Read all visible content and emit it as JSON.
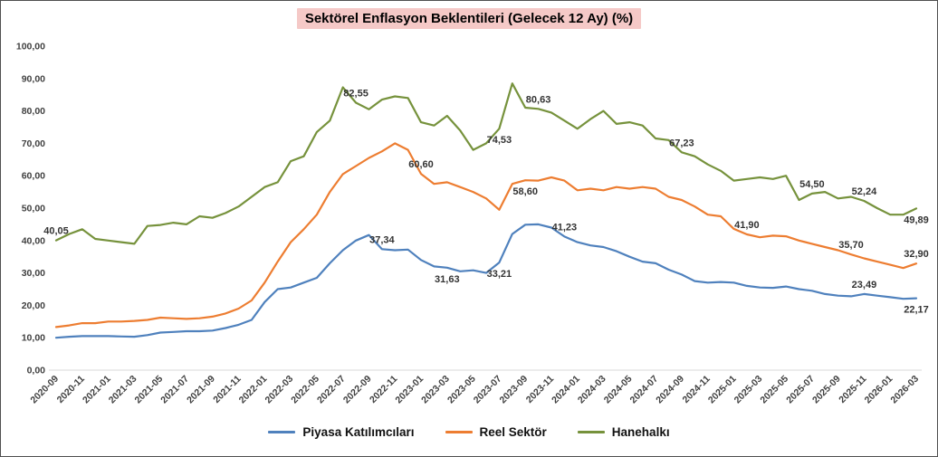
{
  "title": "Sektörel Enflasyon Beklentileri (Gelecek 12 Ay) (%)",
  "colors": {
    "piyasa": "#4F81BD",
    "reel": "#ED7D31",
    "hane": "#76923C",
    "title_bg": "#F5C9C7",
    "label_text": "#333333"
  },
  "legend": [
    {
      "key": "piyasa",
      "label": "Piyasa Katılımcıları"
    },
    {
      "key": "reel",
      "label": "Reel Sektör"
    },
    {
      "key": "hane",
      "label": "Hanehalkı"
    }
  ],
  "chart_data": {
    "type": "line",
    "title": "Sektörel Enflasyon Beklentileri (Gelecek 12 Ay) (%)",
    "xlabel": "",
    "ylabel": "",
    "ylim": [
      0,
      100
    ],
    "grid": false,
    "legend_position": "bottom",
    "y_ticks": [
      "0,00",
      "10,00",
      "20,00",
      "30,00",
      "40,00",
      "50,00",
      "60,00",
      "70,00",
      "80,00",
      "90,00",
      "100,00"
    ],
    "x_tick_step": 2,
    "x": [
      "2020-09",
      "2020-10",
      "2020-11",
      "2020-12",
      "2021-01",
      "2021-02",
      "2021-03",
      "2021-04",
      "2021-05",
      "2021-06",
      "2021-07",
      "2021-08",
      "2021-09",
      "2021-10",
      "2021-11",
      "2021-12",
      "2022-01",
      "2022-02",
      "2022-03",
      "2022-04",
      "2022-05",
      "2022-06",
      "2022-07",
      "2022-08",
      "2022-09",
      "2022-10",
      "2022-11",
      "2022-12",
      "2023-01",
      "2023-02",
      "2023-03",
      "2023-04",
      "2023-05",
      "2023-06",
      "2023-07",
      "2023-08",
      "2023-09",
      "2023-10",
      "2023-11",
      "2023-12",
      "2024-01",
      "2024-02",
      "2024-03",
      "2024-04",
      "2024-05",
      "2024-06",
      "2024-07",
      "2024-08",
      "2024-09",
      "2024-10",
      "2024-11",
      "2024-12",
      "2025-01",
      "2025-02",
      "2025-03",
      "2025-04",
      "2025-05",
      "2025-06",
      "2025-07",
      "2025-08",
      "2025-09",
      "2025-10",
      "2025-11",
      "2025-12",
      "2026-01",
      "2026-02",
      "2026-03"
    ],
    "series": [
      {
        "name": "Piyasa Katılımcıları",
        "key": "piyasa",
        "values": [
          10.0,
          10.3,
          10.5,
          10.5,
          10.5,
          10.4,
          10.3,
          10.8,
          11.6,
          11.8,
          12.0,
          12.0,
          12.2,
          13.0,
          14.0,
          15.5,
          21.0,
          25.0,
          25.5,
          27.0,
          28.5,
          33.0,
          37.0,
          40.0,
          41.7,
          37.34,
          37.0,
          37.2,
          34.0,
          32.0,
          31.63,
          30.5,
          30.8,
          30.0,
          33.21,
          42.0,
          44.9,
          45.0,
          44.0,
          41.23,
          39.5,
          38.5,
          38.0,
          36.7,
          35.0,
          33.5,
          33.0,
          31.0,
          29.5,
          27.5,
          27.0,
          27.2,
          27.0,
          26.0,
          25.5,
          25.4,
          25.8,
          25.0,
          24.5,
          23.5,
          23.0,
          22.8,
          23.49,
          23.0,
          22.5,
          22.0,
          22.17
        ]
      },
      {
        "name": "Reel Sektör",
        "key": "reel",
        "values": [
          13.3,
          13.8,
          14.5,
          14.5,
          15.0,
          15.0,
          15.2,
          15.5,
          16.2,
          16.0,
          15.8,
          16.0,
          16.5,
          17.5,
          19.0,
          21.5,
          27.0,
          33.5,
          39.5,
          43.5,
          48.0,
          55.0,
          60.5,
          63.0,
          65.5,
          67.5,
          70.0,
          68.0,
          60.6,
          57.5,
          58.0,
          56.5,
          55.0,
          53.0,
          49.5,
          57.5,
          58.6,
          58.5,
          59.5,
          58.5,
          55.5,
          56.0,
          55.5,
          56.5,
          56.0,
          56.5,
          56.0,
          53.5,
          52.5,
          50.5,
          48.0,
          47.5,
          43.6,
          41.9,
          41.0,
          41.5,
          41.3,
          40.0,
          39.0,
          38.0,
          37.0,
          35.7,
          34.5,
          33.5,
          32.5,
          31.5,
          32.9
        ]
      },
      {
        "name": "Hanehalkı",
        "key": "hane",
        "values": [
          40.05,
          42.0,
          43.5,
          40.5,
          40.0,
          39.5,
          39.0,
          44.5,
          44.8,
          45.5,
          45.0,
          47.5,
          47.0,
          48.5,
          50.5,
          53.5,
          56.5,
          58.0,
          64.5,
          66.0,
          73.5,
          77.0,
          87.3,
          82.55,
          80.5,
          83.5,
          84.5,
          84.0,
          76.5,
          75.5,
          78.5,
          74.0,
          68.0,
          70.0,
          74.53,
          88.5,
          81.0,
          80.63,
          79.5,
          77.0,
          74.5,
          77.5,
          80.0,
          76.0,
          76.5,
          75.5,
          71.5,
          71.0,
          67.23,
          66.0,
          63.5,
          61.5,
          58.5,
          59.0,
          59.5,
          59.0,
          60.0,
          52.5,
          54.5,
          55.0,
          53.0,
          53.5,
          52.24,
          50.0,
          48.0,
          48.0,
          49.89
        ]
      }
    ],
    "point_labels": [
      {
        "series": "hane",
        "x": "2020-09",
        "text": "40,05",
        "placement": "above"
      },
      {
        "series": "hane",
        "x": "2022-08",
        "text": "82,55",
        "placement": "above"
      },
      {
        "series": "hane",
        "x": "2023-07",
        "text": "74,53",
        "placement": "below"
      },
      {
        "series": "hane",
        "x": "2023-10",
        "text": "80,63",
        "placement": "above"
      },
      {
        "series": "hane",
        "x": "2024-09",
        "text": "67,23",
        "placement": "above"
      },
      {
        "series": "hane",
        "x": "2025-07",
        "text": "54,50",
        "placement": "above"
      },
      {
        "series": "hane",
        "x": "2025-11",
        "text": "52,24",
        "placement": "above"
      },
      {
        "series": "hane",
        "x": "2026-03",
        "text": "49,89",
        "placement": "below"
      },
      {
        "series": "reel",
        "x": "2023-01",
        "text": "60,60",
        "placement": "above"
      },
      {
        "series": "reel",
        "x": "2023-09",
        "text": "58,60",
        "placement": "below"
      },
      {
        "series": "reel",
        "x": "2025-02",
        "text": "41,90",
        "placement": "above"
      },
      {
        "series": "reel",
        "x": "2025-10",
        "text": "35,70",
        "placement": "above"
      },
      {
        "series": "reel",
        "x": "2026-03",
        "text": "32,90",
        "placement": "above"
      },
      {
        "series": "piyasa",
        "x": "2022-10",
        "text": "37,34",
        "placement": "above"
      },
      {
        "series": "piyasa",
        "x": "2023-03",
        "text": "31,63",
        "placement": "below"
      },
      {
        "series": "piyasa",
        "x": "2023-07",
        "text": "33,21",
        "placement": "below"
      },
      {
        "series": "piyasa",
        "x": "2023-12",
        "text": "41,23",
        "placement": "above"
      },
      {
        "series": "piyasa",
        "x": "2025-11",
        "text": "23,49",
        "placement": "above"
      },
      {
        "series": "piyasa",
        "x": "2026-03",
        "text": "22,17",
        "placement": "below"
      }
    ]
  }
}
